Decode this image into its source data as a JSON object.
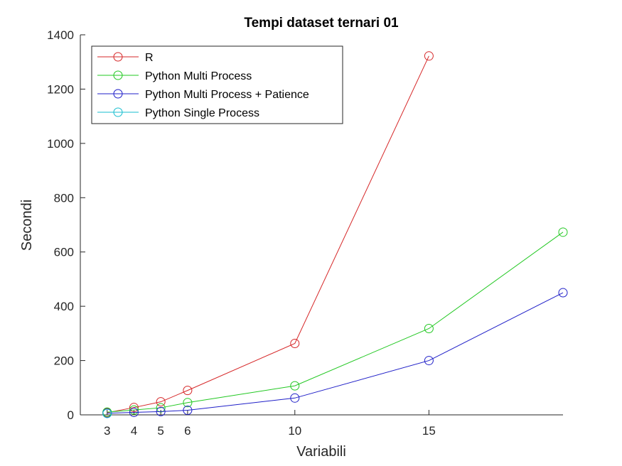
{
  "chart_data": {
    "type": "line",
    "title": "Tempi dataset ternari 01",
    "xlabel": "Variabili",
    "ylabel": "Secondi",
    "xlim": [
      2,
      20
    ],
    "ylim": [
      0,
      1400
    ],
    "xticks": [
      3,
      4,
      5,
      6,
      10,
      15
    ],
    "yticks": [
      0,
      200,
      400,
      600,
      800,
      1000,
      1200,
      1400
    ],
    "grid": false,
    "legend_position": "top-left",
    "marker": "circle",
    "series": [
      {
        "name": "R",
        "color": "#d62728",
        "points": [
          [
            3,
            8
          ],
          [
            4,
            27
          ],
          [
            5,
            48
          ],
          [
            6,
            90
          ],
          [
            10,
            263
          ],
          [
            15,
            1322
          ]
        ]
      },
      {
        "name": "Python Multi Process",
        "color": "#22c822",
        "points": [
          [
            3,
            10
          ],
          [
            4,
            18
          ],
          [
            5,
            26
          ],
          [
            6,
            45
          ],
          [
            10,
            107
          ],
          [
            15,
            318
          ],
          [
            20,
            673
          ]
        ]
      },
      {
        "name": "Python Multi Process + Patience",
        "color": "#1f1fc8",
        "points": [
          [
            3,
            6
          ],
          [
            4,
            9
          ],
          [
            5,
            12
          ],
          [
            6,
            17
          ],
          [
            10,
            62
          ],
          [
            15,
            200
          ],
          [
            20,
            450
          ]
        ]
      },
      {
        "name": "Python Single Process",
        "color": "#17becf",
        "points": [
          [
            3,
            5
          ]
        ]
      }
    ]
  }
}
